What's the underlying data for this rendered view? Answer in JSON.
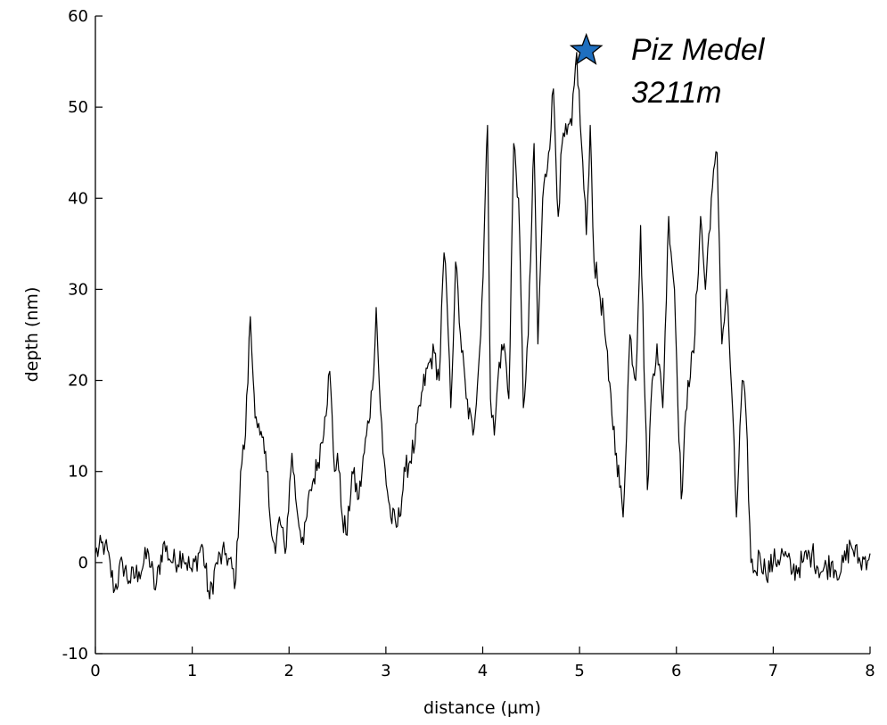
{
  "chart_data": {
    "type": "line",
    "title": "",
    "xlabel": "distance (µm)",
    "ylabel": "depth (nm)",
    "xlim": [
      0,
      8
    ],
    "ylim": [
      -10,
      60
    ],
    "xticks": [
      0,
      1,
      2,
      3,
      4,
      5,
      6,
      7,
      8
    ],
    "yticks": [
      -10,
      0,
      10,
      20,
      30,
      40,
      50,
      60
    ],
    "grid": false,
    "legend": "none",
    "line_color": "#000000",
    "series": [
      {
        "x": [
          0,
          0.1,
          0.2,
          0.28,
          0.35,
          0.45,
          0.55,
          0.62,
          0.7,
          0.8,
          0.9,
          1.0,
          1.1,
          1.18,
          1.25,
          1.35,
          1.45,
          1.5,
          1.55,
          1.6,
          1.63,
          1.66,
          1.7,
          1.78,
          1.82,
          1.86,
          1.9,
          1.96,
          2.03,
          2.08,
          2.15,
          2.22,
          2.3,
          2.37,
          2.42,
          2.47,
          2.5,
          2.55,
          2.6,
          2.65,
          2.72,
          2.8,
          2.86,
          2.9,
          2.93,
          2.97,
          3.05,
          3.12,
          3.2,
          3.3,
          3.38,
          3.45,
          3.5,
          3.55,
          3.6,
          3.63,
          3.67,
          3.72,
          3.77,
          3.83,
          3.9,
          3.98,
          4.05,
          4.08,
          4.12,
          4.17,
          4.22,
          4.27,
          4.32,
          4.37,
          4.42,
          4.47,
          4.53,
          4.57,
          4.62,
          4.68,
          4.73,
          4.78,
          4.82,
          4.87,
          4.92,
          4.97,
          5.02,
          5.07,
          5.11,
          5.15,
          5.2,
          5.25,
          5.3,
          5.38,
          5.45,
          5.52,
          5.58,
          5.63,
          5.7,
          5.75,
          5.8,
          5.86,
          5.92,
          5.98,
          6.05,
          6.12,
          6.18,
          6.25,
          6.3,
          6.36,
          6.42,
          6.47,
          6.52,
          6.57,
          6.62,
          6.68,
          6.72,
          6.77,
          6.82,
          6.86,
          6.92,
          7.0,
          7.1,
          7.2,
          7.3,
          7.4,
          7.5,
          7.6,
          7.7,
          7.8,
          7.9,
          8.0
        ],
        "y": [
          1,
          2,
          -3,
          0,
          -2,
          -1,
          1,
          -3,
          2,
          0,
          1,
          -1,
          2,
          -4,
          0,
          1,
          -2,
          10,
          14,
          27,
          20,
          16,
          14,
          10,
          3,
          1,
          5,
          1,
          12,
          6,
          2,
          8,
          11,
          16,
          21,
          10,
          12,
          5,
          3,
          10,
          7,
          14,
          19,
          28,
          20,
          12,
          5,
          4,
          10,
          13,
          19,
          22,
          23,
          20,
          34,
          29,
          17,
          33,
          25,
          18,
          14,
          25,
          48,
          18,
          14,
          22,
          24,
          18,
          46,
          40,
          17,
          25,
          46,
          24,
          40,
          45,
          52,
          38,
          46,
          47,
          48,
          56,
          46,
          36,
          48,
          33,
          30,
          27,
          20,
          12,
          5,
          25,
          20,
          37,
          8,
          20,
          24,
          17,
          38,
          30,
          7,
          20,
          23,
          38,
          30,
          40,
          45,
          24,
          30,
          19,
          5,
          20,
          16,
          0,
          -1,
          1,
          -1,
          0,
          1,
          -1,
          0,
          1,
          -1,
          0,
          -1,
          2,
          0,
          1
        ],
        "color": "#000000"
      }
    ],
    "annotations": [
      {
        "marker": "star",
        "x": 5.07,
        "y": 56.2,
        "color": "#1f6fbf",
        "text_line1": "Piz Medel",
        "text_line2": "3211m"
      }
    ]
  }
}
